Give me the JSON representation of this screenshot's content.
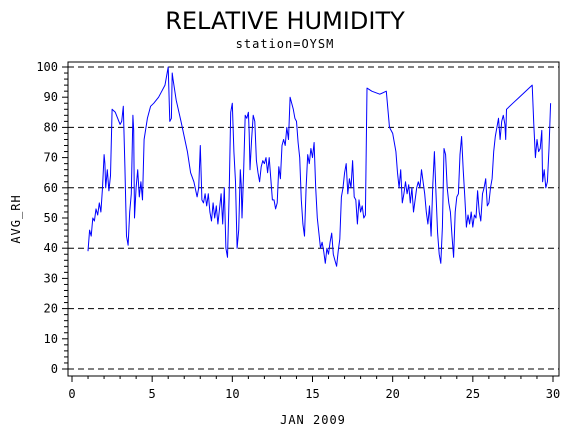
{
  "chart_data": {
    "type": "line",
    "title": "RELATIVE HUMIDITY",
    "subtitle": "station=OYSM",
    "xlabel": "JAN 2009",
    "ylabel": "AVG_RH",
    "xlim": [
      0,
      30
    ],
    "ylim": [
      0,
      100
    ],
    "x_ticks": [
      0,
      5,
      10,
      15,
      20,
      25,
      30
    ],
    "y_ticks": [
      0,
      10,
      20,
      30,
      40,
      50,
      60,
      70,
      80,
      90,
      100
    ],
    "reference_lines": [
      0,
      20,
      40,
      60,
      80,
      100
    ],
    "reference_line_style": "dashed",
    "series_color": "#0000ff",
    "series": [
      {
        "values": [
          [
            1.0,
            39
          ],
          [
            1.1,
            46
          ],
          [
            1.2,
            44
          ],
          [
            1.3,
            50
          ],
          [
            1.4,
            49
          ],
          [
            1.5,
            53
          ],
          [
            1.6,
            51
          ],
          [
            1.7,
            55
          ],
          [
            1.8,
            52
          ],
          [
            1.9,
            60
          ],
          [
            2.0,
            71
          ],
          [
            2.05,
            68
          ],
          [
            2.1,
            60
          ],
          [
            2.2,
            66
          ],
          [
            2.3,
            59
          ],
          [
            2.4,
            64
          ],
          [
            2.5,
            86
          ],
          [
            2.7,
            85
          ],
          [
            3.0,
            81
          ],
          [
            3.1,
            82
          ],
          [
            3.2,
            87
          ],
          [
            3.3,
            67
          ],
          [
            3.4,
            44
          ],
          [
            3.5,
            41
          ],
          [
            3.6,
            52
          ],
          [
            3.7,
            58
          ],
          [
            3.8,
            84
          ],
          [
            3.85,
            79
          ],
          [
            3.9,
            50
          ],
          [
            4.0,
            60
          ],
          [
            4.1,
            66
          ],
          [
            4.2,
            57
          ],
          [
            4.3,
            62
          ],
          [
            4.4,
            56
          ],
          [
            4.5,
            76
          ],
          [
            4.7,
            83
          ],
          [
            4.9,
            87
          ],
          [
            5.1,
            88
          ],
          [
            5.4,
            90
          ],
          [
            5.6,
            92
          ],
          [
            5.8,
            94
          ],
          [
            6.0,
            100
          ],
          [
            6.1,
            82
          ],
          [
            6.2,
            83
          ],
          [
            6.25,
            98
          ],
          [
            6.3,
            96
          ],
          [
            6.5,
            89
          ],
          [
            6.8,
            82
          ],
          [
            7.0,
            77
          ],
          [
            7.2,
            72
          ],
          [
            7.4,
            65
          ],
          [
            7.6,
            62
          ],
          [
            7.8,
            57
          ],
          [
            7.9,
            60
          ],
          [
            8.0,
            74
          ],
          [
            8.1,
            56
          ],
          [
            8.2,
            55
          ],
          [
            8.3,
            58
          ],
          [
            8.4,
            54
          ],
          [
            8.5,
            58
          ],
          [
            8.6,
            52
          ],
          [
            8.7,
            49
          ],
          [
            8.8,
            55
          ],
          [
            8.9,
            50
          ],
          [
            9.0,
            54
          ],
          [
            9.1,
            48
          ],
          [
            9.2,
            53
          ],
          [
            9.3,
            58
          ],
          [
            9.4,
            48
          ],
          [
            9.5,
            60
          ],
          [
            9.6,
            40
          ],
          [
            9.7,
            37
          ],
          [
            9.8,
            57
          ],
          [
            9.9,
            85
          ],
          [
            10.0,
            88
          ],
          [
            10.1,
            72
          ],
          [
            10.2,
            62
          ],
          [
            10.3,
            40
          ],
          [
            10.4,
            46
          ],
          [
            10.5,
            66
          ],
          [
            10.55,
            61
          ],
          [
            10.6,
            50
          ],
          [
            10.7,
            65
          ],
          [
            10.8,
            84
          ],
          [
            10.9,
            83
          ],
          [
            11.0,
            85
          ],
          [
            11.05,
            78
          ],
          [
            11.1,
            66
          ],
          [
            11.2,
            76
          ],
          [
            11.3,
            84
          ],
          [
            11.4,
            82
          ],
          [
            11.5,
            69
          ],
          [
            11.6,
            65
          ],
          [
            11.7,
            62
          ],
          [
            11.8,
            67
          ],
          [
            11.9,
            69
          ],
          [
            12.0,
            68
          ],
          [
            12.1,
            70
          ],
          [
            12.2,
            65
          ],
          [
            12.3,
            70
          ],
          [
            12.4,
            63
          ],
          [
            12.5,
            56
          ],
          [
            12.6,
            56
          ],
          [
            12.7,
            53
          ],
          [
            12.8,
            55
          ],
          [
            12.9,
            67
          ],
          [
            13.0,
            63
          ],
          [
            13.1,
            74
          ],
          [
            13.2,
            76
          ],
          [
            13.3,
            74
          ],
          [
            13.4,
            80
          ],
          [
            13.5,
            76
          ],
          [
            13.6,
            90
          ],
          [
            13.7,
            88
          ],
          [
            13.8,
            86
          ],
          [
            13.9,
            83
          ],
          [
            14.0,
            82
          ],
          [
            14.1,
            75
          ],
          [
            14.2,
            70
          ],
          [
            14.3,
            56
          ],
          [
            14.4,
            48
          ],
          [
            14.5,
            44
          ],
          [
            14.6,
            60
          ],
          [
            14.7,
            71
          ],
          [
            14.8,
            68
          ],
          [
            14.9,
            73
          ],
          [
            15.0,
            70
          ],
          [
            15.1,
            75
          ],
          [
            15.2,
            60
          ],
          [
            15.3,
            50
          ],
          [
            15.4,
            45
          ],
          [
            15.5,
            40
          ],
          [
            15.6,
            42
          ],
          [
            15.7,
            39
          ],
          [
            15.8,
            35
          ],
          [
            15.9,
            40
          ],
          [
            16.0,
            38
          ],
          [
            16.1,
            42
          ],
          [
            16.2,
            45
          ],
          [
            16.3,
            38
          ],
          [
            16.4,
            36
          ],
          [
            16.5,
            34
          ],
          [
            16.6,
            39
          ],
          [
            16.7,
            43
          ],
          [
            16.8,
            57
          ],
          [
            16.9,
            60
          ],
          [
            17.0,
            65
          ],
          [
            17.1,
            68
          ],
          [
            17.2,
            58
          ],
          [
            17.3,
            63
          ],
          [
            17.4,
            60
          ],
          [
            17.5,
            69
          ],
          [
            17.6,
            57
          ],
          [
            17.7,
            56
          ],
          [
            17.8,
            48
          ],
          [
            17.9,
            56
          ],
          [
            18.0,
            52
          ],
          [
            18.1,
            54
          ],
          [
            18.2,
            50
          ],
          [
            18.3,
            51
          ],
          [
            18.4,
            93
          ],
          [
            18.7,
            92
          ],
          [
            19.2,
            91
          ],
          [
            19.6,
            92
          ],
          [
            19.8,
            80
          ],
          [
            20.0,
            78
          ],
          [
            20.1,
            75
          ],
          [
            20.2,
            72
          ],
          [
            20.3,
            65
          ],
          [
            20.4,
            60
          ],
          [
            20.5,
            66
          ],
          [
            20.6,
            55
          ],
          [
            20.7,
            58
          ],
          [
            20.8,
            62
          ],
          [
            20.9,
            58
          ],
          [
            21.0,
            61
          ],
          [
            21.1,
            55
          ],
          [
            21.2,
            60
          ],
          [
            21.3,
            52
          ],
          [
            21.4,
            56
          ],
          [
            21.5,
            60
          ],
          [
            21.6,
            62
          ],
          [
            21.7,
            60
          ],
          [
            21.8,
            66
          ],
          [
            21.9,
            62
          ],
          [
            22.0,
            58
          ],
          [
            22.1,
            52
          ],
          [
            22.2,
            48
          ],
          [
            22.3,
            54
          ],
          [
            22.4,
            44
          ],
          [
            22.5,
            61
          ],
          [
            22.6,
            72
          ],
          [
            22.7,
            58
          ],
          [
            22.8,
            45
          ],
          [
            22.9,
            38
          ],
          [
            23.0,
            35
          ],
          [
            23.1,
            47
          ],
          [
            23.2,
            73
          ],
          [
            23.3,
            71
          ],
          [
            23.4,
            60
          ],
          [
            23.5,
            55
          ],
          [
            23.6,
            52
          ],
          [
            23.7,
            44
          ],
          [
            23.8,
            37
          ],
          [
            23.9,
            52
          ],
          [
            24.0,
            57
          ],
          [
            24.1,
            58
          ],
          [
            24.2,
            71
          ],
          [
            24.3,
            77
          ],
          [
            24.4,
            66
          ],
          [
            24.5,
            57
          ],
          [
            24.6,
            47
          ],
          [
            24.7,
            51
          ],
          [
            24.8,
            48
          ],
          [
            24.9,
            52
          ],
          [
            25.0,
            47
          ],
          [
            25.1,
            51
          ],
          [
            25.2,
            50
          ],
          [
            25.3,
            59
          ],
          [
            25.4,
            52
          ],
          [
            25.5,
            49
          ],
          [
            25.6,
            58
          ],
          [
            25.7,
            60
          ],
          [
            25.8,
            63
          ],
          [
            25.9,
            54
          ],
          [
            26.0,
            55
          ],
          [
            26.1,
            60
          ],
          [
            26.2,
            63
          ],
          [
            26.3,
            72
          ],
          [
            26.4,
            77
          ],
          [
            26.5,
            80
          ],
          [
            26.6,
            83
          ],
          [
            26.7,
            76
          ],
          [
            26.8,
            82
          ],
          [
            26.9,
            84
          ],
          [
            27.0,
            81
          ],
          [
            27.05,
            76
          ],
          [
            27.1,
            86
          ],
          [
            27.5,
            88
          ],
          [
            27.9,
            90
          ],
          [
            28.3,
            92
          ],
          [
            28.7,
            94
          ],
          [
            28.8,
            81
          ],
          [
            28.9,
            70
          ],
          [
            29.0,
            76
          ],
          [
            29.1,
            72
          ],
          [
            29.2,
            73
          ],
          [
            29.3,
            79
          ],
          [
            29.35,
            62
          ],
          [
            29.45,
            66
          ],
          [
            29.55,
            60
          ],
          [
            29.65,
            62
          ],
          [
            29.75,
            73
          ],
          [
            29.85,
            88
          ]
        ]
      }
    ]
  }
}
